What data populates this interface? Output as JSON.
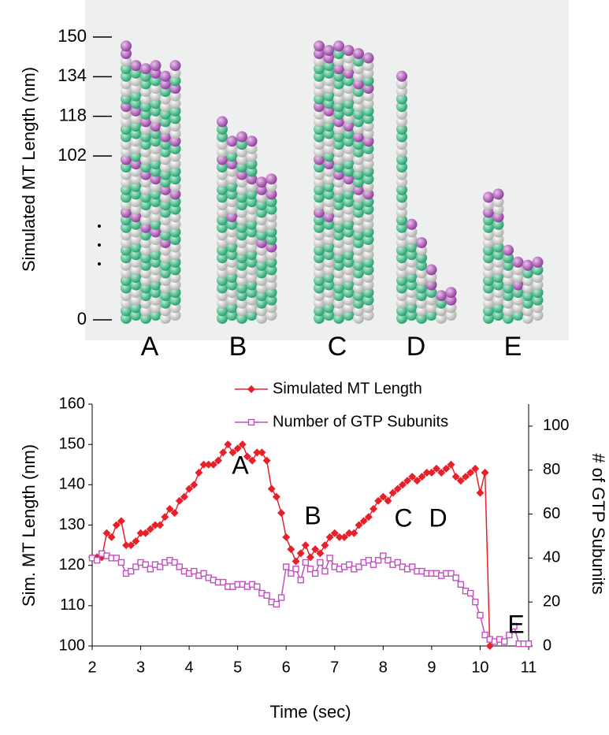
{
  "chart_data": [
    {
      "type": "schematic",
      "ylabel": "Simulated MT Length (nm)",
      "yticks": [
        0,
        102,
        118,
        134,
        150
      ],
      "categories": [
        "A",
        "B",
        "C",
        "D",
        "E"
      ]
    },
    {
      "type": "line",
      "xlabel": "Time (sec)",
      "ylabel": "Sim. MT Length (nm)",
      "y2label": "# of GTP Subunits",
      "xlim": [
        2,
        11
      ],
      "xticks": [
        2,
        3,
        4,
        5,
        6,
        7,
        8,
        9,
        10,
        11
      ],
      "ylim": [
        100,
        160
      ],
      "yticks": [
        100,
        110,
        120,
        130,
        140,
        150,
        160
      ],
      "y2lim": [
        0,
        110
      ],
      "y2ticks": [
        0,
        20,
        40,
        60,
        80,
        100
      ],
      "legend": "top-center",
      "annotations": [
        "A",
        "B",
        "C",
        "D",
        "E"
      ],
      "x": [
        2.0,
        2.1,
        2.2,
        2.3,
        2.4,
        2.5,
        2.6,
        2.7,
        2.8,
        2.9,
        3.0,
        3.1,
        3.2,
        3.3,
        3.4,
        3.5,
        3.6,
        3.7,
        3.8,
        3.9,
        4.0,
        4.1,
        4.2,
        4.3,
        4.4,
        4.5,
        4.6,
        4.7,
        4.8,
        4.9,
        5.0,
        5.1,
        5.2,
        5.3,
        5.4,
        5.5,
        5.6,
        5.7,
        5.8,
        5.9,
        6.0,
        6.1,
        6.2,
        6.3,
        6.4,
        6.5,
        6.6,
        6.7,
        6.8,
        6.9,
        7.0,
        7.1,
        7.2,
        7.3,
        7.4,
        7.5,
        7.6,
        7.7,
        7.8,
        7.9,
        8.0,
        8.1,
        8.2,
        8.3,
        8.4,
        8.5,
        8.6,
        8.7,
        8.8,
        8.9,
        9.0,
        9.1,
        9.2,
        9.3,
        9.4,
        9.5,
        9.6,
        9.7,
        9.8,
        9.9,
        10.0,
        10.1,
        10.2,
        10.3,
        10.4,
        10.5,
        10.6,
        10.7,
        10.8,
        10.9,
        11.0
      ],
      "series": [
        {
          "name": "Simulated MT Length",
          "color": "#e8202a",
          "marker": "diamond",
          "values": [
            122,
            122,
            122,
            128,
            127,
            130,
            131,
            125,
            125,
            126,
            128,
            128,
            129,
            130,
            130,
            132,
            134,
            133,
            136,
            137,
            139,
            140,
            143,
            145,
            145,
            145,
            146,
            148,
            150,
            148,
            149,
            150,
            147,
            146,
            148,
            148,
            146,
            139,
            137,
            133,
            127,
            124,
            121,
            123,
            125,
            122,
            124,
            123,
            125,
            127,
            128,
            127,
            127,
            128,
            128,
            130,
            131,
            132,
            134,
            136,
            137,
            136,
            138,
            139,
            140,
            141,
            142,
            141,
            142,
            143,
            143,
            144,
            143,
            144,
            145,
            142,
            141,
            142,
            143,
            144,
            138,
            143,
            100,
            null,
            null,
            null,
            null,
            null,
            null,
            null,
            null
          ]
        },
        {
          "name": "Number of GTP Subunits",
          "color": "#c04fc0",
          "marker": "square",
          "axis": "y2",
          "values": [
            40,
            39,
            42,
            41,
            40,
            40,
            38,
            33,
            34,
            36,
            38,
            37,
            35,
            37,
            36,
            38,
            39,
            38,
            36,
            34,
            33,
            34,
            32,
            33,
            31,
            30,
            29,
            29,
            27,
            27,
            28,
            28,
            27,
            28,
            27,
            24,
            23,
            20,
            19,
            22,
            36,
            33,
            35,
            30,
            38,
            35,
            33,
            38,
            34,
            40,
            36,
            35,
            36,
            37,
            35,
            36,
            38,
            39,
            37,
            39,
            41,
            39,
            37,
            38,
            36,
            35,
            36,
            34,
            34,
            33,
            33,
            33,
            32,
            33,
            33,
            31,
            28,
            25,
            24,
            20,
            14,
            5,
            3,
            2,
            3,
            2,
            5,
            9,
            1,
            1,
            1
          ]
        }
      ]
    }
  ]
}
